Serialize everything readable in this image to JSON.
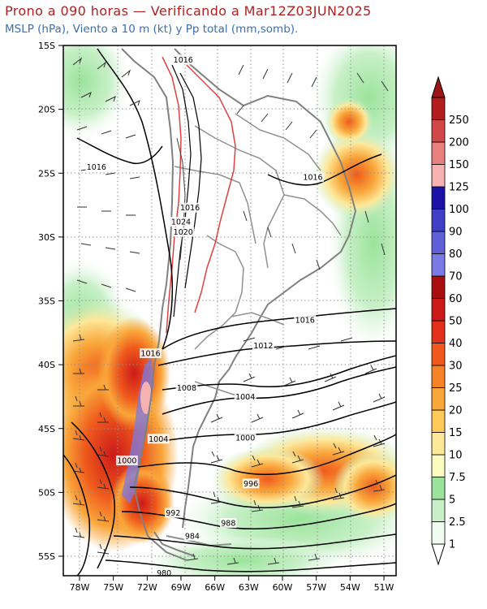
{
  "header": {
    "title": "Prono a 090 horas — Verificando a Mar12Z03JUN2025",
    "subtitle": "MSLP (hPa), Viento a 10 m (kt) y Pp total (mm,somb)."
  },
  "map": {
    "lat_labels": [
      "15S",
      "20S",
      "25S",
      "30S",
      "35S",
      "40S",
      "45S",
      "50S",
      "55S"
    ],
    "lon_labels": [
      "78W",
      "75W",
      "72W",
      "69W",
      "66W",
      "63W",
      "60W",
      "57W",
      "54W",
      "51W"
    ],
    "isobars": [
      {
        "label": "1016",
        "lon": -68.8,
        "lat": -16.1
      },
      {
        "label": "1016",
        "lon": -76.5,
        "lat": -24.5
      },
      {
        "label": "1016",
        "lon": -68.2,
        "lat": -27.7
      },
      {
        "label": "1024",
        "lon": -69.0,
        "lat": -28.8
      },
      {
        "label": "1020",
        "lon": -68.8,
        "lat": -29.6
      },
      {
        "label": "1016",
        "lon": -57.3,
        "lat": -25.3
      },
      {
        "label": "1016",
        "lon": -58.0,
        "lat": -36.5
      },
      {
        "label": "1016",
        "lon": -71.7,
        "lat": -39.1
      },
      {
        "label": "1012",
        "lon": -61.7,
        "lat": -38.5
      },
      {
        "label": "1008",
        "lon": -68.5,
        "lat": -41.8
      },
      {
        "label": "1004",
        "lon": -63.3,
        "lat": -42.5
      },
      {
        "label": "1004",
        "lon": -71.0,
        "lat": -45.8
      },
      {
        "label": "1000",
        "lon": -63.3,
        "lat": -45.7
      },
      {
        "label": "1000",
        "lon": -73.8,
        "lat": -47.5
      },
      {
        "label": "996",
        "lon": -62.8,
        "lat": -49.3
      },
      {
        "label": "992",
        "lon": -69.7,
        "lat": -51.6
      },
      {
        "label": "988",
        "lon": -64.8,
        "lat": -52.4
      },
      {
        "label": "984",
        "lon": -68.0,
        "lat": -53.4
      },
      {
        "label": "980",
        "lon": -70.5,
        "lat": -56.3
      }
    ]
  },
  "colorbar": {
    "values": [
      "1",
      "2.5",
      "5",
      "7.5",
      "10",
      "15",
      "20",
      "25",
      "30",
      "40",
      "50",
      "60",
      "70",
      "80",
      "90",
      "100",
      "125",
      "150",
      "200",
      "250"
    ],
    "colors": [
      "#f0fcf0",
      "#c8f0c8",
      "#9be39b",
      "#fdfcc0",
      "#fde89a",
      "#fcc95a",
      "#f9a63a",
      "#f58328",
      "#ef5a1c",
      "#e2311a",
      "#cc1a1a",
      "#a80d10",
      "#7a7ae6",
      "#5f5fd8",
      "#3f3fc6",
      "#1c12a8",
      "#f6b2b2",
      "#e88080",
      "#d24848",
      "#b21e1e"
    ]
  }
}
